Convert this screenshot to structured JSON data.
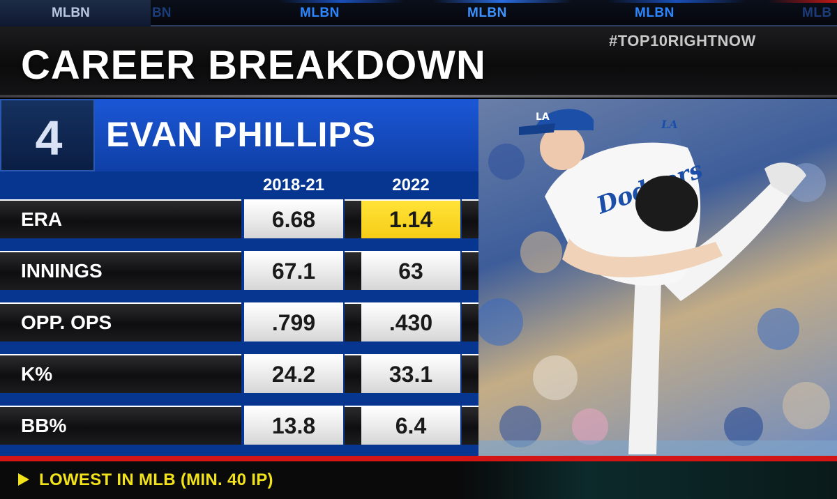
{
  "ticker": {
    "active": "MLBN",
    "ghost": "BN",
    "items": [
      "MLBN",
      "MLBN",
      "MLBN",
      "MLB"
    ]
  },
  "header": {
    "title": "CAREER BREAKDOWN",
    "hashtag": "#TOP10RIGHTNOW"
  },
  "player": {
    "rank": "4",
    "name": "EVAN PHILLIPS"
  },
  "table": {
    "columns": [
      "2018-21",
      "2022"
    ],
    "rows": [
      {
        "label": "ERA",
        "values": [
          "6.68",
          "1.14"
        ],
        "highlight": [
          false,
          true
        ]
      },
      {
        "label": "INNINGS",
        "values": [
          "67.1",
          "63"
        ],
        "highlight": [
          false,
          false
        ]
      },
      {
        "label": "OPP. OPS",
        "values": [
          ".799",
          ".430"
        ],
        "highlight": [
          false,
          false
        ]
      },
      {
        "label": "K%",
        "values": [
          "24.2",
          "33.1"
        ],
        "highlight": [
          false,
          false
        ]
      },
      {
        "label": "BB%",
        "values": [
          "13.8",
          "6.4"
        ],
        "highlight": [
          false,
          false
        ]
      }
    ]
  },
  "photo": {
    "cap_logo": "LA",
    "jersey_text": "Dodgers",
    "sleeve_logo": "LA"
  },
  "footer": {
    "note": "LOWEST IN MLB (MIN. 40 IP)"
  },
  "colors": {
    "panel_blue": "#06368f",
    "highlight_yellow": "#f6cd16",
    "accent_red": "#d41515",
    "footer_yellow": "#f2e21a"
  }
}
